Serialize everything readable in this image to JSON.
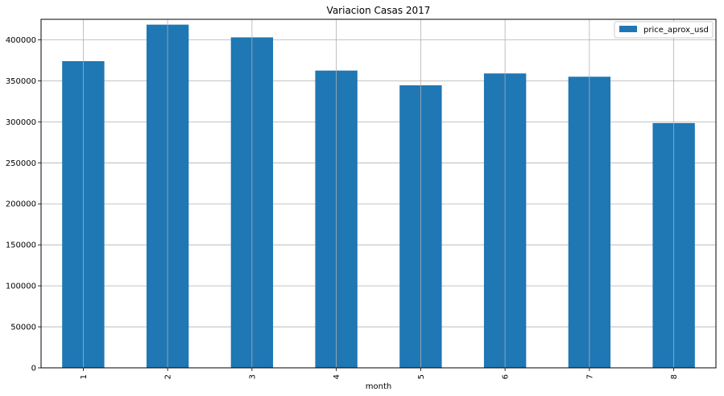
{
  "chart_data": {
    "type": "bar",
    "title": "Variacion Casas 2017",
    "xlabel": "month",
    "ylabel": "",
    "categories": [
      "1",
      "2",
      "3",
      "4",
      "5",
      "6",
      "7",
      "8"
    ],
    "series": [
      {
        "name": "price_aprox_usd",
        "values": [
          374000,
          418500,
          403000,
          362500,
          344500,
          359000,
          355000,
          298500
        ]
      }
    ],
    "ylim": [
      0,
      425000
    ],
    "yticks": [
      0,
      50000,
      100000,
      150000,
      200000,
      250000,
      300000,
      350000,
      400000
    ],
    "grid": true,
    "legend_position": "top-right",
    "bar_color": "#1f77b4"
  }
}
